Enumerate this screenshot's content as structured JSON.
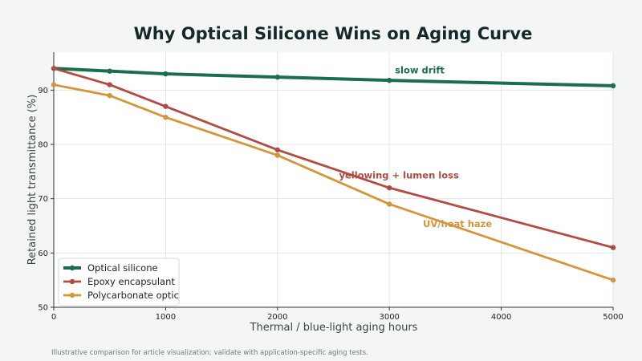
{
  "chart_data": {
    "type": "line",
    "title": "Why Optical Silicone Wins on Aging Curve",
    "xlabel": "Thermal / blue-light aging hours",
    "ylabel": "Retained light transmittance (%)",
    "xlim": [
      0,
      5000
    ],
    "ylim": [
      50,
      97
    ],
    "x_ticks": [
      0,
      1000,
      2000,
      3000,
      4000,
      5000
    ],
    "y_ticks": [
      50,
      60,
      70,
      80,
      90
    ],
    "grid": true,
    "legend_position": "bottom-left",
    "series": [
      {
        "name": "Optical silicone",
        "color": "#1b6e4c",
        "x": [
          0,
          500,
          1000,
          2000,
          3000,
          5000
        ],
        "y": [
          94,
          93.5,
          93,
          92.4,
          91.8,
          90.8
        ]
      },
      {
        "name": "Epoxy encapsulant",
        "color": "#b24b44",
        "x": [
          0,
          500,
          1000,
          2000,
          3000,
          5000
        ],
        "y": [
          94,
          91,
          87,
          79,
          72,
          61
        ]
      },
      {
        "name": "Polycarbonate optic",
        "color": "#d4963b",
        "x": [
          0,
          500,
          1000,
          2000,
          3000,
          5000
        ],
        "y": [
          91,
          89,
          85,
          78,
          69,
          55
        ]
      }
    ],
    "annotations": [
      {
        "text": "slow drift",
        "x": 3050,
        "y": 93.1,
        "color": "#1b6e4c"
      },
      {
        "text": "yellowing + lumen loss",
        "x": 2550,
        "y": 73.7,
        "color": "#b24b44"
      },
      {
        "text": "UV/heat haze",
        "x": 3300,
        "y": 64.8,
        "color": "#d4963b"
      }
    ]
  },
  "footnote": "Illustrative comparison for article visualization; validate with application-specific aging tests."
}
